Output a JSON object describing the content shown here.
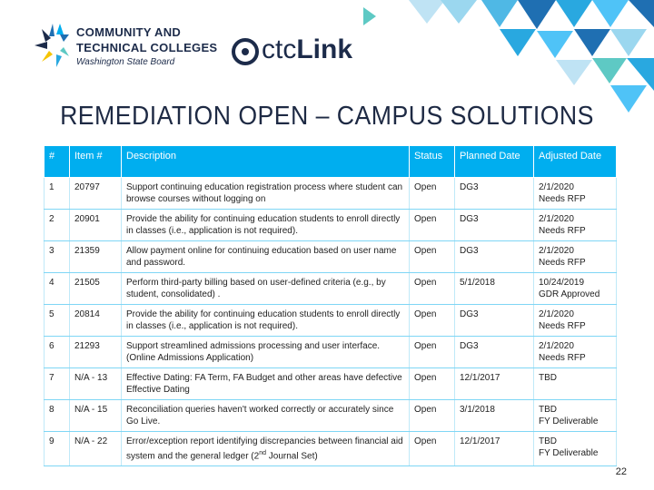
{
  "header": {
    "org_line1": "COMMUNITY AND",
    "org_line2": "TECHNICAL COLLEGES",
    "org_line3": "Washington State Board",
    "ctc_logo_thin": "ctc",
    "ctc_logo_bold": "Link"
  },
  "title": "REMEDIATION OPEN – CAMPUS SOLUTIONS",
  "table": {
    "columns": [
      "#",
      "Item #",
      "Description",
      "Status",
      "Planned Date",
      "Adjusted Date"
    ],
    "rows": [
      {
        "num": "1",
        "item": "20797",
        "desc": "Support continuing education registration process where student can browse courses without logging on",
        "status": "Open",
        "planned": "DG3",
        "adjusted": "2/1/2020\nNeeds RFP"
      },
      {
        "num": "2",
        "item": "20901",
        "desc": "Provide the ability for continuing education students to enroll directly in classes (i.e., application is not required).",
        "status": "Open",
        "planned": "DG3",
        "adjusted": "2/1/2020\nNeeds RFP"
      },
      {
        "num": "3",
        "item": "21359",
        "desc": "Allow payment online for continuing education based on user name and password.",
        "status": "Open",
        "planned": "DG3",
        "adjusted": "2/1/2020\nNeeds RFP"
      },
      {
        "num": "4",
        "item": "21505",
        "desc": "Perform third-party billing based on user-defined criteria (e.g., by student, consolidated) .",
        "status": "Open",
        "planned": "5/1/2018",
        "adjusted": "10/24/2019\nGDR Approved"
      },
      {
        "num": "5",
        "item": "20814",
        "desc": "Provide the ability for continuing education students to enroll directly in classes (i.e., application is not required).",
        "status": "Open",
        "planned": "DG3",
        "adjusted": "2/1/2020\nNeeds RFP"
      },
      {
        "num": "6",
        "item": "21293",
        "desc": "Support streamlined admissions processing and user interface. (Online Admissions Application)",
        "status": "Open",
        "planned": "DG3",
        "adjusted": "2/1/2020\nNeeds RFP"
      },
      {
        "num": "7",
        "item": "N/A - 13",
        "desc": "Effective Dating: FA Term, FA Budget and other areas have defective Effective Dating",
        "status": "Open",
        "planned": "12/1/2017",
        "adjusted": "TBD"
      },
      {
        "num": "8",
        "item": "N/A - 15",
        "desc": "Reconciliation queries haven't worked correctly or accurately since Go Live.",
        "status": "Open",
        "planned": "3/1/2018",
        "adjusted": "TBD\nFY Deliverable"
      },
      {
        "num": "9",
        "item": "N/A - 22",
        "desc_before": "Error/exception report identifying discrepancies between financial aid system and the general ledger (2",
        "desc_sup": "nd",
        "desc_after": " Journal Set)",
        "status": "Open",
        "planned": "12/1/2017",
        "adjusted": "TBD\nFY Deliverable"
      }
    ]
  },
  "page_number": "22",
  "colors": {
    "header_bg": "#00aeef",
    "navy": "#1c2b4a",
    "tri_light": "#4fc3f7",
    "tri_mid": "#29a8e0",
    "tri_dark": "#1f6fb2",
    "tri_teal": "#5ec9c4"
  }
}
